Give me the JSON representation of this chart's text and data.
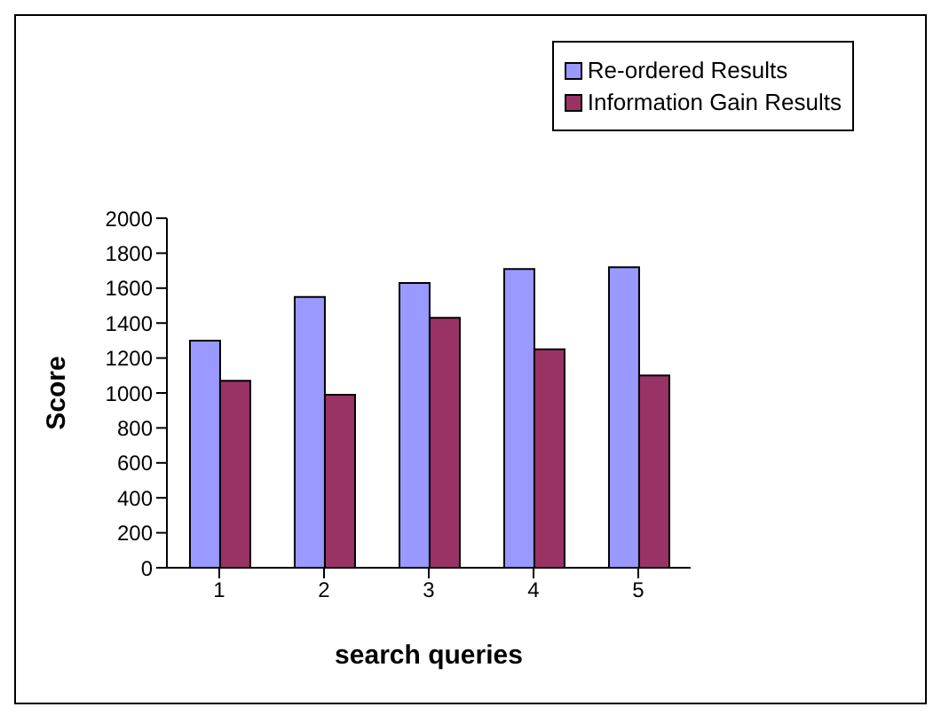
{
  "chart_data": {
    "type": "bar",
    "xlabel": "search queries",
    "ylabel": "Score",
    "categories": [
      "1",
      "2",
      "3",
      "4",
      "5"
    ],
    "series": [
      {
        "name": "Re-ordered Results",
        "color": "#9999ff",
        "values": [
          1300,
          1550,
          1630,
          1710,
          1720
        ]
      },
      {
        "name": "Information Gain Results",
        "color": "#993366",
        "values": [
          1070,
          990,
          1430,
          1250,
          1100
        ]
      }
    ],
    "ylim": [
      0,
      2000
    ],
    "yticks": [
      0,
      200,
      400,
      600,
      800,
      1000,
      1200,
      1400,
      1600,
      1800,
      2000
    ],
    "grid": false,
    "legend": "top right"
  }
}
